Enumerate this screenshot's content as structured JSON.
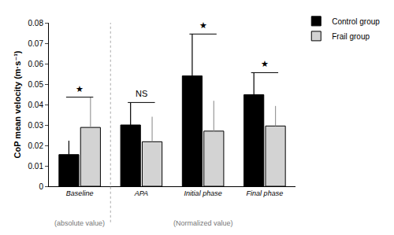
{
  "chart_data": {
    "type": "bar",
    "y_label": "CoP mean velocity (m·s⁻¹)",
    "categories": [
      "Baseline",
      "APA",
      "Initial phase",
      "Final phase"
    ],
    "series": [
      {
        "name": "Control group",
        "color": "#000000",
        "values": [
          0.0155,
          0.03,
          0.054,
          0.0448
        ],
        "errors": [
          0.0068,
          0.011,
          0.0205,
          0.0108
        ]
      },
      {
        "name": "Frail group",
        "color": "#d3d3d3",
        "values": [
          0.0288,
          0.0218,
          0.027,
          0.0295
        ],
        "errors": [
          0.0148,
          0.0122,
          0.0148,
          0.0098
        ]
      }
    ],
    "ylim": [
      0,
      0.08
    ],
    "yticks": [
      0,
      0.01,
      0.02,
      0.03,
      0.04,
      0.05,
      0.06,
      0.07,
      0.08
    ],
    "grid": false,
    "legend": "top right",
    "annotations": [
      {
        "category": "Baseline",
        "text": "★"
      },
      {
        "category": "APA",
        "text": "NS"
      },
      {
        "category": "Initial phase",
        "text": "★"
      },
      {
        "category": "Final phase",
        "text": "★"
      }
    ],
    "group_labels": [
      {
        "text": "(absolute value)",
        "categories": [
          "Baseline"
        ]
      },
      {
        "text": "(Normalized value)",
        "categories": [
          "APA",
          "Initial phase",
          "Final phase"
        ]
      }
    ]
  }
}
